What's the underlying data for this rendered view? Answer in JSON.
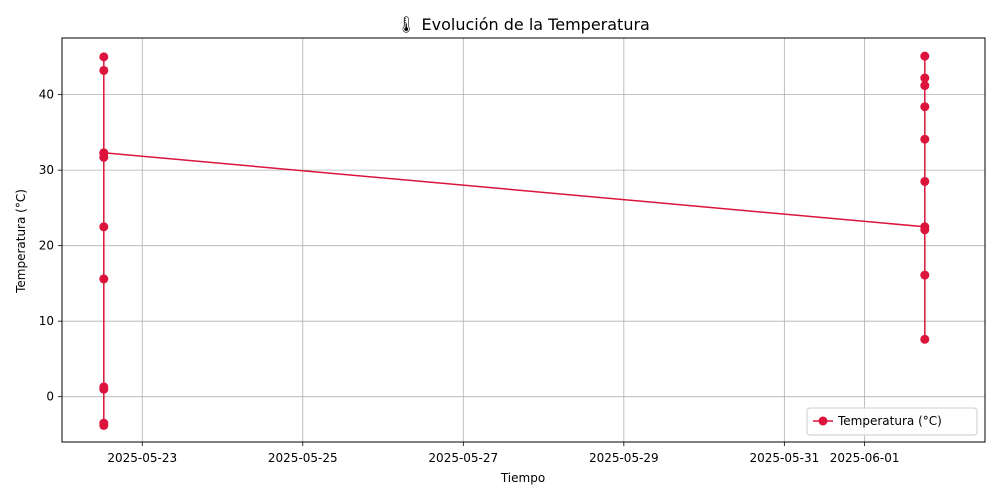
{
  "chart_data": {
    "type": "line",
    "title": "🌡 Evolución de la Temperatura",
    "title_icon": "thermometer-icon",
    "xlabel": "Tiempo",
    "ylabel": "Temperatura (°C)",
    "grid": true,
    "legend": "bottom-right",
    "xlim": [
      "2025-05-22T00:00",
      "2025-06-02T12:00"
    ],
    "ylim": [
      -6,
      47.5
    ],
    "x_ticks": [
      "2025-05-23",
      "2025-05-25",
      "2025-05-27",
      "2025-05-29",
      "2025-05-31",
      "2025-06-01"
    ],
    "y_ticks": [
      0,
      10,
      20,
      30,
      40
    ],
    "colors": {
      "series": "#dc143c",
      "grid": "#b0b0b0"
    },
    "series": [
      {
        "name": "Temperatura (°C)",
        "x": [
          "2025-05-22T12:30",
          "2025-05-22T12:30",
          "2025-05-22T12:30",
          "2025-05-22T12:30",
          "2025-05-22T12:30",
          "2025-05-22T12:30",
          "2025-05-22T12:30",
          "2025-05-22T12:30",
          "2025-05-22T12:30",
          "2025-05-22T12:30",
          "2025-05-22T12:30",
          "2025-06-01T18:00",
          "2025-06-01T18:00",
          "2025-06-01T18:00",
          "2025-06-01T18:00",
          "2025-06-01T18:00",
          "2025-06-01T18:00",
          "2025-06-01T18:00",
          "2025-06-01T18:00",
          "2025-06-01T18:00",
          "2025-06-01T18:00"
        ],
        "y": [
          45.0,
          43.2,
          -3.5,
          -3.8,
          1.0,
          1.3,
          15.6,
          22.5,
          31.7,
          32.2,
          32.3,
          22.5,
          22.1,
          16.1,
          7.6,
          28.5,
          34.1,
          38.4,
          41.2,
          42.2,
          45.1
        ]
      }
    ]
  }
}
